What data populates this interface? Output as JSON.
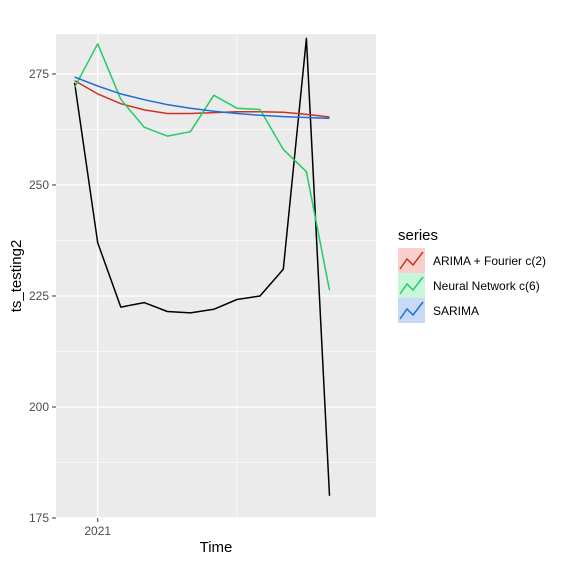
{
  "chart_data": {
    "type": "line",
    "xlabel": "Time",
    "ylabel": "ts_testing2",
    "x_tick_labels": [
      "2021"
    ],
    "x_tick_positions": [
      2021.0
    ],
    "y_ticks": [
      175,
      200,
      225,
      250,
      275
    ],
    "ylim": [
      175,
      284
    ],
    "xlim": [
      2020.85,
      2022.0
    ],
    "grid": true,
    "legend": {
      "title": "series",
      "position": "right",
      "entries": [
        "ARIMA + Fourier c(2)",
        "Neural Network c(6)",
        "SARIMA"
      ]
    },
    "x": [
      2020.917,
      2021.0,
      2021.083,
      2021.167,
      2021.25,
      2021.333,
      2021.417,
      2021.5,
      2021.583,
      2021.667,
      2021.75,
      2021.833
    ],
    "actual": {
      "color": "#000000",
      "values": [
        273.0,
        237.0,
        222.5,
        223.5,
        221.5,
        221.2,
        222.0,
        224.2,
        225.0,
        231.0,
        283.0,
        180.0
      ]
    },
    "series": [
      {
        "name": "ARIMA + Fourier c(2)",
        "color": "#cc3322",
        "values": [
          273.5,
          270.5,
          268.3,
          266.9,
          266.1,
          266.1,
          266.3,
          266.5,
          266.5,
          266.4,
          265.9,
          265.3
        ]
      },
      {
        "name": "Neural Network c(6)",
        "color": "#22cc66",
        "values": [
          272.0,
          281.8,
          269.3,
          263.0,
          261.0,
          262.0,
          270.2,
          267.3,
          267.0,
          258.0,
          253.0,
          226.3
        ]
      },
      {
        "name": "SARIMA",
        "color": "#1f6fd6",
        "values": [
          274.3,
          272.3,
          270.5,
          269.2,
          268.1,
          267.3,
          266.6,
          266.1,
          265.7,
          265.4,
          265.2,
          265.0
        ]
      }
    ]
  }
}
